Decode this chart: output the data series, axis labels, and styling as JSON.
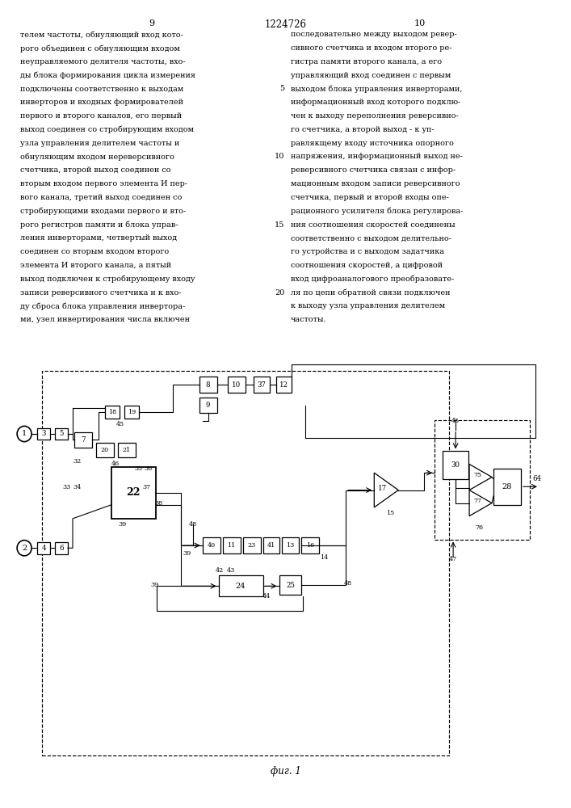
{
  "page_left": "9",
  "patent_number": "1224726",
  "page_right": "10",
  "bg_color": "#ffffff",
  "caption": "фиг. 1",
  "left_text_lines": [
    "телем частоты, обнуляющий вход кото-",
    "рого объединен с обнуляющим входом",
    "неуправляемого делителя частоты, вхо-",
    "ды блока формирования цикла измерения",
    "подключены соответственно к выходам",
    "инверторов и входных формирователей",
    "первого и второго каналов, его первый",
    "выход соединен со стробирующим входом",
    "узла управления делителем частоты и",
    "обнуляющим входом нереверсивного",
    "счетчика, второй выход соединен со",
    "вторым входом первого элемента И пер-",
    "вого канала, третий выход соединен со",
    "стробирующими входами первого и вто-",
    "рого регистров памяти и блока управ-",
    "ления инверторами, четвертый выход",
    "соединен со вторым входом второго",
    "элемента И второго канала, а пятый",
    "выход подключен к стробирующему входу",
    "записи реверсивного счетчика и к вхо-",
    "ду сброса блока управления инвертора-",
    "ми, узел инвертирования числа включен"
  ],
  "right_text_lines": [
    "последовательно между выходом ревер-",
    "сивного счетчика и входом второго ре-",
    "гистра памяти второго канала, а его",
    "управляющий вход соединен с первым",
    "выходом блока управления инверторами,",
    "информационный вход которого подклю-",
    "чен к выходу переполнения реверсивно-",
    "го счетчика, а второй выход - к уп-",
    "равлякщему входу источника опорного",
    "напряжения, информационный выход не-",
    "реверсивного счетчика связан с инфор-",
    "мационным входом записи реверсивного",
    "счетчика, первый и второй входы опе-",
    "рационного усилителя блока регулирова-",
    "ния соотношения скоростей соединены",
    "соответственно с выходом делительно-",
    "го устройства и с выходом задатчика",
    "соотношения скоростей, а цифровой",
    "вход цифроаналогового преобразовате-",
    "ля по цепи обратной связи подключен",
    "к выходу узла управления делителем",
    "частоты."
  ]
}
